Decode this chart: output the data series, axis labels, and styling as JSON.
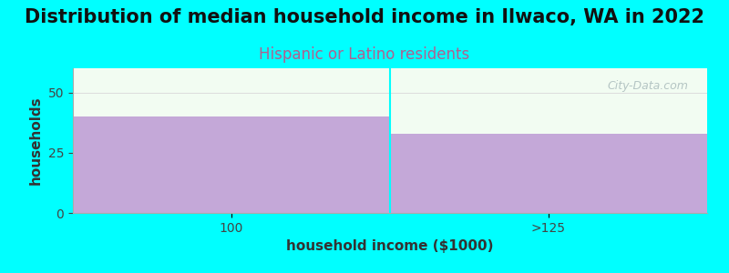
{
  "title": "Distribution of median household income in Ilwaco, WA in 2022",
  "subtitle": "Hispanic or Latino residents",
  "xlabel": "household income ($1000)",
  "ylabel": "households",
  "background_color": "#00FFFF",
  "plot_bg_color": "#F2FCF2",
  "bar_color": "#C4A8D8",
  "categories": [
    "100",
    ">125"
  ],
  "values": [
    40,
    33
  ],
  "ylim": [
    0,
    60
  ],
  "yticks": [
    0,
    25,
    50
  ],
  "title_fontsize": 15,
  "subtitle_fontsize": 12,
  "subtitle_color": "#B06090",
  "axis_label_fontsize": 11,
  "tick_label_fontsize": 10,
  "watermark": "City-Data.com",
  "watermark_color": "#AABCBC",
  "grid_color": "#DDDDDD"
}
